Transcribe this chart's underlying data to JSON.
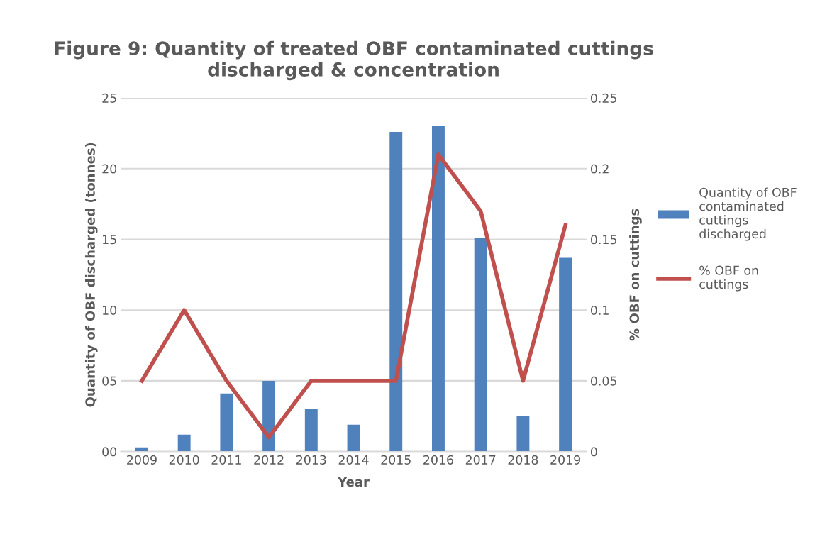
{
  "chart_data": {
    "type": "bar",
    "title": "Figure 9: Quantity of treated OBF contaminated cuttings\ndischarged & concentration",
    "xlabel": "Year",
    "ylabel": "Quantity of OBF discharged (tonnes)",
    "y2label": "% OBF on cuttings",
    "categories": [
      "2009",
      "2010",
      "2011",
      "2012",
      "2013",
      "2014",
      "2015",
      "2016",
      "2017",
      "2018",
      "2019"
    ],
    "series": [
      {
        "name": "Quantity of OBF contaminated cuttings discharged",
        "color": "#4f81bd",
        "values": [
          0.3,
          1.2,
          4.1,
          5.0,
          3.0,
          1.9,
          22.6,
          23.0,
          15.1,
          2.5,
          13.7
        ]
      },
      {
        "name": "% OBF on cuttings",
        "type": "line",
        "axis": "y2",
        "color": "#c0504d",
        "values": [
          0.05,
          0.1,
          0.05,
          0.01,
          0.05,
          0.05,
          0.05,
          0.21,
          0.17,
          0.05,
          0.16
        ]
      }
    ],
    "ylim": [
      0,
      25
    ],
    "yticks": [
      {
        "value": 0,
        "label": "00"
      },
      {
        "value": 5,
        "label": "05"
      },
      10,
      15,
      20,
      25
    ],
    "y2lim": [
      0,
      0.25
    ],
    "y2ticks": [
      0,
      0.05,
      0.1,
      0.15,
      0.2,
      0.25
    ],
    "grid": "y",
    "legend": "right"
  }
}
